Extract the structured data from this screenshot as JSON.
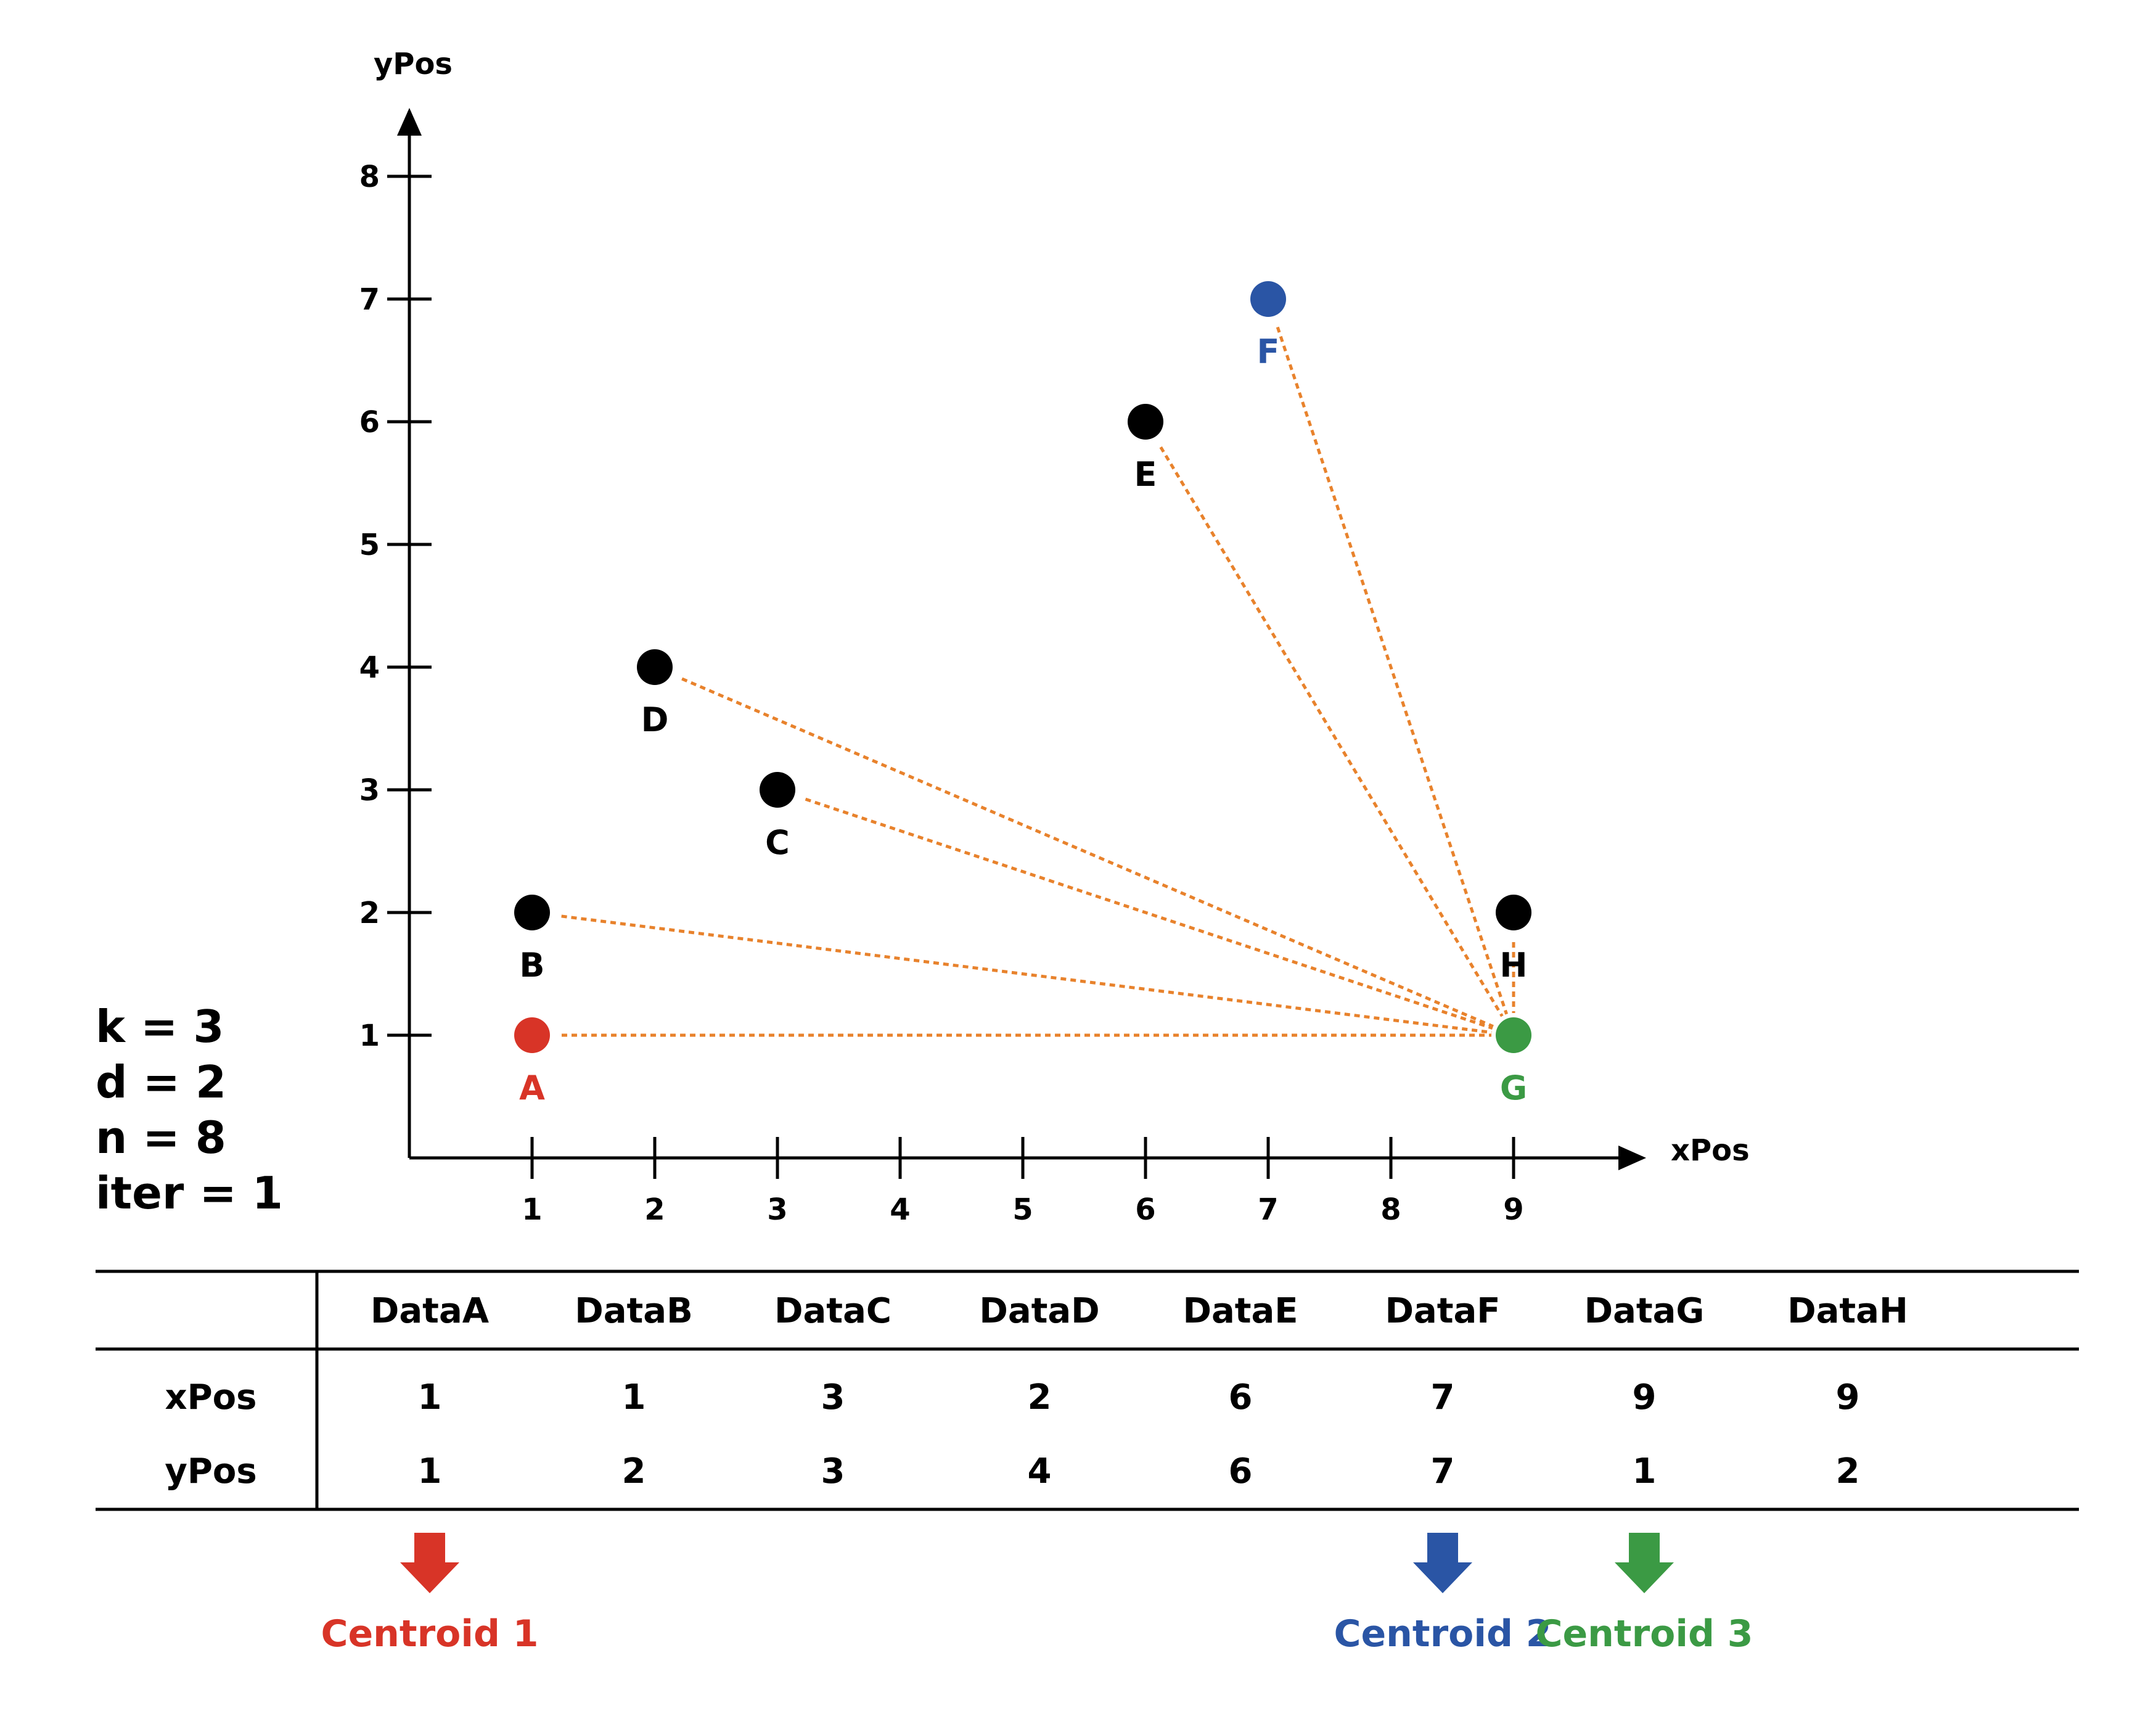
{
  "params": {
    "k": "k = 3",
    "d": "d = 2",
    "n": "n = 8",
    "iter": "iter = 1"
  },
  "colors": {
    "black": "#000000",
    "centroid1": "#d83427",
    "centroid2": "#2a55a5",
    "centroid3": "#3b9a44",
    "distance_line": "#e8822c"
  },
  "chart_data": {
    "type": "scatter",
    "xlabel": "xPos",
    "ylabel": "yPos",
    "xlim": [
      0,
      10
    ],
    "ylim": [
      0,
      8.5
    ],
    "x_ticks": [
      "1",
      "2",
      "3",
      "4",
      "5",
      "6",
      "7",
      "8",
      "9"
    ],
    "y_ticks": [
      "1",
      "2",
      "3",
      "4",
      "5",
      "6",
      "7",
      "8"
    ],
    "points": [
      {
        "label": "A",
        "x": 1,
        "y": 1,
        "role": "centroid1"
      },
      {
        "label": "B",
        "x": 1,
        "y": 2,
        "role": "data"
      },
      {
        "label": "C",
        "x": 3,
        "y": 3,
        "role": "data"
      },
      {
        "label": "D",
        "x": 2,
        "y": 4,
        "role": "data"
      },
      {
        "label": "E",
        "x": 6,
        "y": 6,
        "role": "data"
      },
      {
        "label": "F",
        "x": 7,
        "y": 7,
        "role": "centroid2"
      },
      {
        "label": "G",
        "x": 9,
        "y": 1,
        "role": "centroid3"
      },
      {
        "label": "H",
        "x": 9,
        "y": 2,
        "role": "data"
      }
    ],
    "distance_lines": {
      "to": "G",
      "from": [
        "A",
        "B",
        "C",
        "D",
        "E",
        "F",
        "H"
      ]
    }
  },
  "table": {
    "columns": [
      "DataA",
      "DataB",
      "DataC",
      "DataD",
      "DataE",
      "DataF",
      "DataG",
      "DataH"
    ],
    "rows": [
      {
        "label": "xPos",
        "values": [
          "1",
          "1",
          "3",
          "2",
          "6",
          "7",
          "9",
          "9"
        ]
      },
      {
        "label": "yPos",
        "values": [
          "1",
          "2",
          "3",
          "4",
          "6",
          "7",
          "1",
          "2"
        ]
      }
    ]
  },
  "centroids": [
    {
      "label": "Centroid 1",
      "column": "DataA",
      "role": "centroid1"
    },
    {
      "label": "Centroid 2",
      "column": "DataF",
      "role": "centroid2"
    },
    {
      "label": "Centroid 3",
      "column": "DataG",
      "role": "centroid3"
    }
  ]
}
